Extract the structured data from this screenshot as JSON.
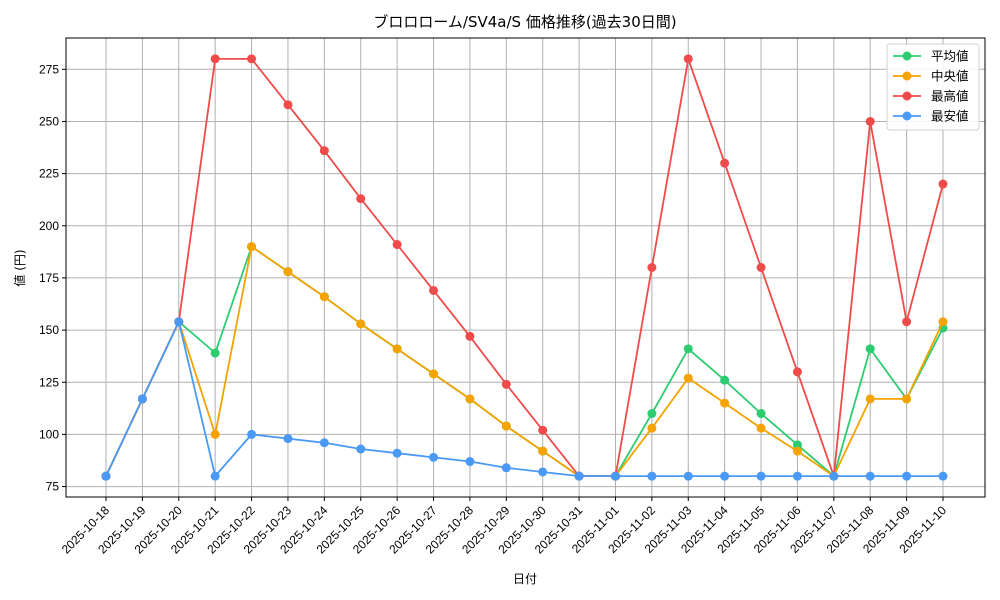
{
  "chart_data": {
    "type": "line",
    "title": "ブロロローム/SV4a/S 価格推移(過去30日間)",
    "xlabel": "日付",
    "ylabel": "値 (円)",
    "ylim": [
      70,
      290
    ],
    "yticks": [
      75,
      100,
      125,
      150,
      175,
      200,
      225,
      250,
      275
    ],
    "grid": true,
    "legend_position": "upper right",
    "x": [
      "2025-10-18",
      "2025-10-19",
      "2025-10-20",
      "2025-10-21",
      "2025-10-22",
      "2025-10-23",
      "2025-10-24",
      "2025-10-25",
      "2025-10-26",
      "2025-10-27",
      "2025-10-28",
      "2025-10-29",
      "2025-10-30",
      "2025-10-31",
      "2025-11-01",
      "2025-11-02",
      "2025-11-03",
      "2025-11-04",
      "2025-11-05",
      "2025-11-06",
      "2025-11-07",
      "2025-11-08",
      "2025-11-09",
      "2025-11-10"
    ],
    "series": [
      {
        "name": "平均値",
        "color": "#2ecc71",
        "values": [
          80,
          117,
          154,
          139,
          190,
          178,
          166,
          153,
          141,
          129,
          117,
          104,
          92,
          80,
          80,
          110,
          141,
          126,
          110,
          95,
          80,
          141,
          117,
          151
        ]
      },
      {
        "name": "中央値",
        "color": "#f5a300",
        "values": [
          80,
          117,
          154,
          100,
          190,
          178,
          166,
          153,
          141,
          129,
          117,
          104,
          92,
          80,
          80,
          103,
          127,
          115,
          103,
          92,
          80,
          117,
          117,
          154
        ]
      },
      {
        "name": "最高値",
        "color": "#f04b4b",
        "values": [
          80,
          117,
          154,
          280,
          280,
          258,
          236,
          213,
          191,
          169,
          147,
          124,
          102,
          80,
          80,
          180,
          280,
          230,
          180,
          130,
          80,
          250,
          154,
          220
        ]
      },
      {
        "name": "最安値",
        "color": "#4a9af5",
        "values": [
          80,
          117,
          154,
          80,
          100,
          98,
          96,
          93,
          91,
          89,
          87,
          84,
          82,
          80,
          80,
          80,
          80,
          80,
          80,
          80,
          80,
          80,
          80,
          80
        ]
      }
    ]
  }
}
